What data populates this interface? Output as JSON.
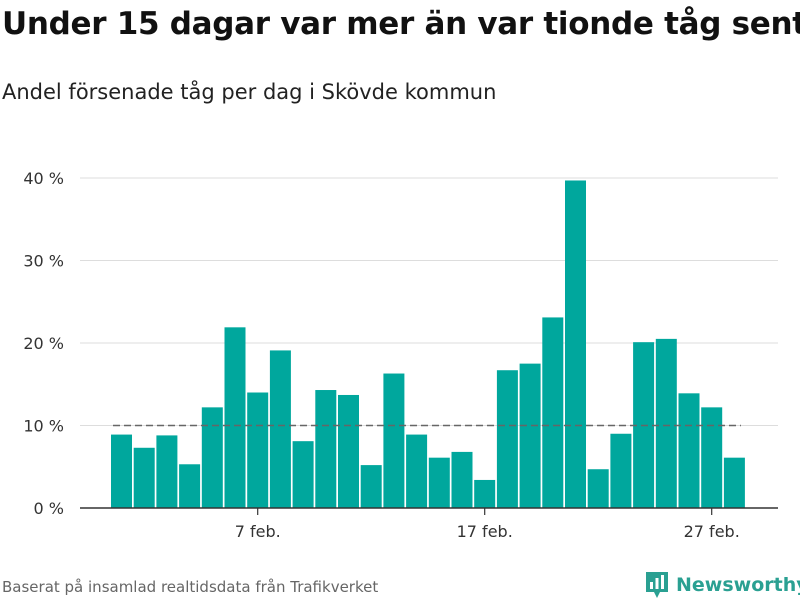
{
  "title": "Under 15 dagar var mer än var tionde tåg sent",
  "subtitle": "Andel försenade tåg per dag i Skövde kommun",
  "source": "Baserat på insamlad realtidsdata från Trafikverket",
  "brand": {
    "name": "Newsworthy",
    "icon": "bar-chart-logo-icon",
    "color": "#2aa092"
  },
  "chart_data": {
    "type": "bar",
    "x": [
      "1 feb.",
      "2 feb.",
      "3 feb.",
      "4 feb.",
      "5 feb.",
      "6 feb.",
      "7 feb.",
      "8 feb.",
      "9 feb.",
      "10 feb.",
      "11 feb.",
      "12 feb.",
      "13 feb.",
      "14 feb.",
      "15 feb.",
      "16 feb.",
      "17 feb.",
      "18 feb.",
      "19 feb.",
      "20 feb.",
      "21 feb.",
      "22 feb.",
      "23 feb.",
      "24 feb.",
      "25 feb.",
      "26 feb.",
      "27 feb.",
      "28 feb."
    ],
    "values": [
      8.9,
      7.3,
      8.8,
      5.3,
      12.2,
      21.9,
      14.0,
      19.1,
      8.1,
      14.3,
      13.7,
      5.2,
      16.3,
      8.9,
      6.1,
      6.8,
      3.4,
      16.7,
      17.5,
      23.1,
      39.7,
      4.7,
      9.0,
      20.1,
      20.5,
      13.9,
      12.2,
      6.1
    ],
    "bar_color": "#00a79d",
    "reference_line": {
      "value": 10,
      "style": "dashed",
      "color": "#666666"
    },
    "xticks": [
      "7 feb.",
      "17 feb.",
      "27 feb."
    ],
    "yticks": [
      0,
      10,
      20,
      30,
      40
    ],
    "ytick_labels": [
      "0 %",
      "10 %",
      "20 %",
      "30 %",
      "40 %"
    ],
    "ylim": [
      0,
      40
    ],
    "xlabel": "",
    "ylabel": "",
    "grid": true
  }
}
